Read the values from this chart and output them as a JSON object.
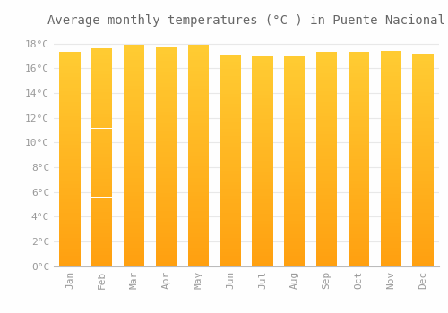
{
  "title": "Average monthly temperatures (°C ) in Puente Nacional",
  "months": [
    "Jan",
    "Feb",
    "Mar",
    "Apr",
    "May",
    "Jun",
    "Jul",
    "Aug",
    "Sep",
    "Oct",
    "Nov",
    "Dec"
  ],
  "temperatures": [
    17.3,
    17.6,
    17.9,
    17.8,
    17.9,
    17.1,
    17.0,
    17.0,
    17.3,
    17.3,
    17.4,
    17.2
  ],
  "ylim": [
    0,
    19
  ],
  "yticks": [
    0,
    2,
    4,
    6,
    8,
    10,
    12,
    14,
    16,
    18
  ],
  "bar_color_top": "#FFCC33",
  "bar_color_bottom": "#FFA010",
  "background_color": "#FEFEFE",
  "grid_color": "#E8E8E8",
  "title_fontsize": 10,
  "tick_fontsize": 8,
  "font_color": "#999999",
  "bar_width": 0.65
}
